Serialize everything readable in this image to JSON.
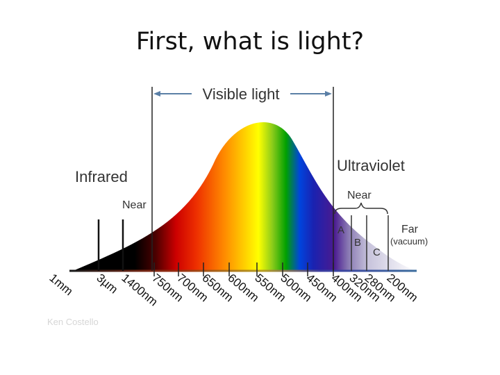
{
  "slide": {
    "title": "First, what is light?"
  },
  "diagram": {
    "visible_label": "Visible light",
    "infrared_label": "Infrared",
    "infrared_near_label": "Near",
    "ultraviolet_label": "Ultraviolet",
    "uv_near_label": "Near",
    "uv_a_label": "A",
    "uv_b_label": "B",
    "uv_c_label": "C",
    "uv_far_label": "Far",
    "uv_far_sub_label": "(vacuum)",
    "credit": "Ken Costello",
    "wavelengths": [
      "1mm",
      "3µm",
      "1400nm",
      "750nm",
      "700nm",
      "650nm",
      "600nm",
      "550nm",
      "500nm",
      "450nm",
      "400nm",
      "320nm",
      "280nm",
      "200nm"
    ]
  },
  "colors": {
    "arrow": "#5a7fa6",
    "axis": "#3d6e9e",
    "label": "#333333"
  }
}
